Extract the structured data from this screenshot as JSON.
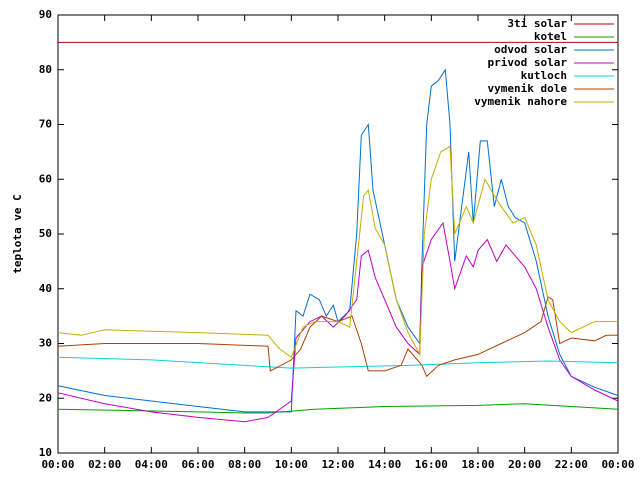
{
  "chart_data": {
    "type": "line",
    "ylabel": "teplota ve C",
    "xlim": [
      0,
      24
    ],
    "ylim": [
      10,
      90
    ],
    "xticks": [
      {
        "value": 0,
        "label": "00:00"
      },
      {
        "value": 2,
        "label": "02:00"
      },
      {
        "value": 4,
        "label": "04:00"
      },
      {
        "value": 6,
        "label": "06:00"
      },
      {
        "value": 8,
        "label": "08:00"
      },
      {
        "value": 10,
        "label": "10:00"
      },
      {
        "value": 12,
        "label": "12:00"
      },
      {
        "value": 14,
        "label": "14:00"
      },
      {
        "value": 16,
        "label": "16:00"
      },
      {
        "value": 18,
        "label": "18:00"
      },
      {
        "value": 20,
        "label": "20:00"
      },
      {
        "value": 22,
        "label": "22:00"
      },
      {
        "value": 24,
        "label": "00:00"
      }
    ],
    "yticks": [
      10,
      20,
      30,
      40,
      50,
      60,
      70,
      80,
      90
    ],
    "legend": "top-right",
    "series": [
      {
        "name": "3ti solar",
        "color": "#c00000",
        "x": [
          0,
          24
        ],
        "values": [
          85,
          85
        ]
      },
      {
        "name": "kotel",
        "color": "#00a000",
        "x": [
          0,
          6,
          8,
          9,
          11,
          14,
          18,
          20,
          22,
          24
        ],
        "values": [
          18,
          17.5,
          17.3,
          17.3,
          18,
          18.5,
          18.7,
          19,
          18.5,
          18
        ]
      },
      {
        "name": "odvod solar",
        "color": "#0070d0",
        "x": [
          0,
          2,
          4,
          6,
          8,
          10,
          10.2,
          10.5,
          10.8,
          11.2,
          11.5,
          11.8,
          12,
          12.5,
          12.8,
          13,
          13.3,
          13.5,
          14,
          14.5,
          15,
          15.5,
          15.6,
          15.8,
          16,
          16.3,
          16.6,
          16.8,
          17,
          17.3,
          17.6,
          17.8,
          18.1,
          18.4,
          18.7,
          19,
          19.3,
          19.6,
          20,
          20.5,
          21,
          21.5,
          22,
          23,
          24
        ],
        "values": [
          22.3,
          20.5,
          19.5,
          18.5,
          17.5,
          17.5,
          36,
          35,
          39,
          38,
          35,
          37,
          34,
          36,
          50,
          68,
          70,
          58,
          48,
          38,
          33,
          30,
          45,
          70,
          77,
          78,
          80,
          70,
          45,
          55,
          65,
          52,
          67,
          67,
          55,
          60,
          55,
          53,
          52,
          45,
          35,
          28,
          24,
          22,
          20.5
        ]
      },
      {
        "name": "privod solar",
        "color": "#c000c0",
        "x": [
          0,
          2,
          4,
          6,
          8,
          9,
          10,
          10.2,
          10.8,
          11.3,
          11.8,
          12.3,
          12.8,
          13,
          13.3,
          13.6,
          14,
          14.5,
          15,
          15.5,
          15.6,
          16,
          16.5,
          16.8,
          17,
          17.5,
          17.8,
          18,
          18.4,
          18.8,
          19.2,
          19.6,
          20,
          20.5,
          21,
          21.5,
          22,
          23,
          24
        ],
        "values": [
          21,
          19,
          17.5,
          16.5,
          15.7,
          16.5,
          19.5,
          31,
          34,
          35,
          33,
          35,
          38,
          46,
          47,
          42,
          38,
          33,
          30,
          28,
          44,
          49,
          52,
          45,
          40,
          46,
          44,
          47,
          49,
          45,
          48,
          46,
          44,
          40,
          33,
          27,
          24,
          21.5,
          19.5
        ]
      },
      {
        "name": "kutloch",
        "color": "#00d8d8",
        "x": [
          0,
          4,
          8,
          10,
          12,
          15,
          18,
          21,
          24
        ],
        "values": [
          27.5,
          27,
          26,
          25.5,
          25.7,
          26,
          26.5,
          26.8,
          26.5
        ]
      },
      {
        "name": "vymenik dole",
        "color": "#b04000",
        "x": [
          0,
          2,
          6,
          9,
          9.1,
          10,
          10.4,
          10.8,
          11.3,
          12,
          12.6,
          13,
          13.3,
          14,
          14.7,
          15,
          15.6,
          15.8,
          16.3,
          17,
          18,
          19,
          20,
          20.7,
          21,
          21.2,
          21.5,
          22,
          23,
          23.5,
          24
        ],
        "values": [
          29.5,
          30,
          30,
          29.5,
          25,
          27,
          29,
          33,
          35,
          34,
          35,
          30,
          25,
          25,
          26,
          29,
          26,
          24,
          26,
          27,
          28,
          30,
          32,
          34,
          38.5,
          38,
          30,
          31,
          30.5,
          31.5,
          31.5
        ]
      },
      {
        "name": "vymenik nahore",
        "color": "#c0b000",
        "x": [
          0,
          1,
          2,
          6,
          9,
          9.5,
          10,
          10.5,
          11,
          12,
          12.5,
          12.8,
          13.1,
          13.3,
          13.6,
          14,
          14.5,
          15,
          15.5,
          15.7,
          16,
          16.4,
          16.8,
          17,
          17.5,
          17.8,
          18.3,
          18.7,
          19,
          19.5,
          20,
          20.5,
          21,
          21.5,
          22,
          23,
          24
        ],
        "values": [
          32,
          31.5,
          32.5,
          32,
          31.5,
          29,
          27.5,
          33,
          34,
          34,
          33,
          45,
          57,
          58,
          51,
          48,
          38,
          32,
          28,
          50,
          60,
          65,
          66,
          50,
          55,
          52,
          60,
          57,
          55,
          52,
          53,
          48,
          38,
          34,
          32,
          34,
          34
        ]
      }
    ]
  }
}
